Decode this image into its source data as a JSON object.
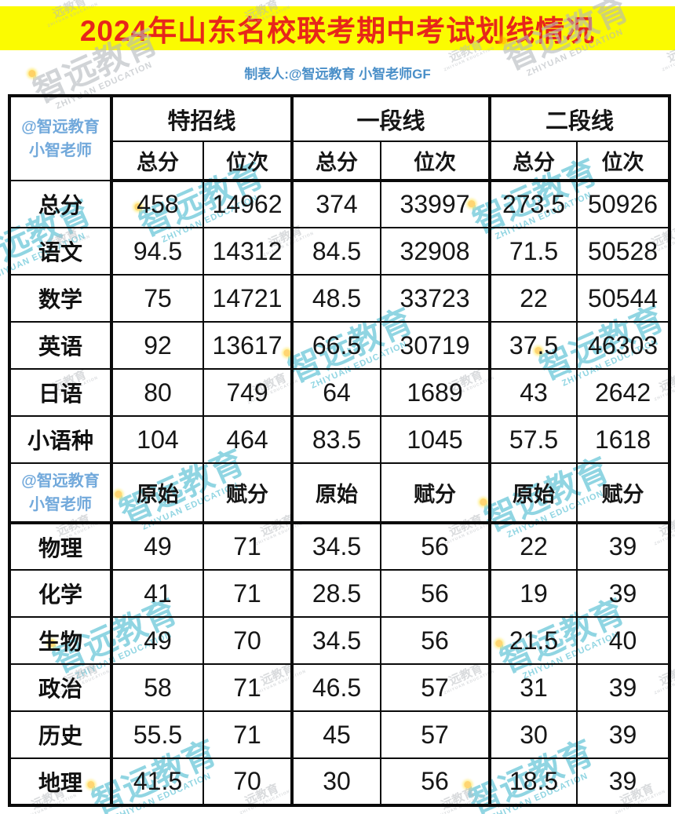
{
  "page": {
    "title": "2024年山东名校联考期中考试划线情况",
    "subtitle": "制表人:@智远教育 小智老师GF"
  },
  "watermark": {
    "brand": "智远教育",
    "brand_en": "ZHIYUAN EDUCATION",
    "brand_small": "远教育"
  },
  "colors": {
    "banner_bg": "#fbfb01",
    "title_red": "#e7261b",
    "sub_blue": "#4a8fc8",
    "corner_blue": "#72a9db",
    "wm_teal": "#37b4cc",
    "wm_gray": "#b4b8bd"
  },
  "table": {
    "corner_label": {
      "line1": "@智远教育",
      "line2": "小智老师"
    },
    "groups": [
      "特招线",
      "一段线",
      "二段线"
    ],
    "section1": {
      "col_headers": [
        "总分",
        "位次",
        "总分",
        "位次",
        "总分",
        "位次"
      ],
      "rows": [
        {
          "label": "总分",
          "values": [
            "458",
            "14962",
            "374",
            "33997",
            "273.5",
            "50926"
          ]
        },
        {
          "label": "语文",
          "values": [
            "94.5",
            "14312",
            "84.5",
            "32908",
            "71.5",
            "50528"
          ]
        },
        {
          "label": "数学",
          "values": [
            "75",
            "14721",
            "48.5",
            "33723",
            "22",
            "50544"
          ]
        },
        {
          "label": "英语",
          "values": [
            "92",
            "13617",
            "66.5",
            "30719",
            "37.5",
            "46303"
          ]
        },
        {
          "label": "日语",
          "values": [
            "80",
            "749",
            "64",
            "1689",
            "43",
            "2642"
          ]
        },
        {
          "label": "小语种",
          "values": [
            "104",
            "464",
            "83.5",
            "1045",
            "57.5",
            "1618"
          ]
        }
      ]
    },
    "section2": {
      "corner_label": {
        "line1": "@智远教育",
        "line2": "小智老师"
      },
      "col_headers": [
        "原始",
        "赋分",
        "原始",
        "赋分",
        "原始",
        "赋分"
      ],
      "rows": [
        {
          "label": "物理",
          "values": [
            "49",
            "71",
            "34.5",
            "56",
            "22",
            "39"
          ]
        },
        {
          "label": "化学",
          "values": [
            "41",
            "71",
            "28.5",
            "56",
            "19",
            "39"
          ]
        },
        {
          "label": "生物",
          "values": [
            "49",
            "70",
            "34.5",
            "56",
            "21.5",
            "40"
          ]
        },
        {
          "label": "政治",
          "values": [
            "58",
            "71",
            "46.5",
            "57",
            "31",
            "39"
          ]
        },
        {
          "label": "历史",
          "values": [
            "55.5",
            "71",
            "45",
            "57",
            "30",
            "39"
          ]
        },
        {
          "label": "地理",
          "values": [
            "41.5",
            "70",
            "30",
            "56",
            "18.5",
            "39"
          ]
        }
      ]
    }
  }
}
